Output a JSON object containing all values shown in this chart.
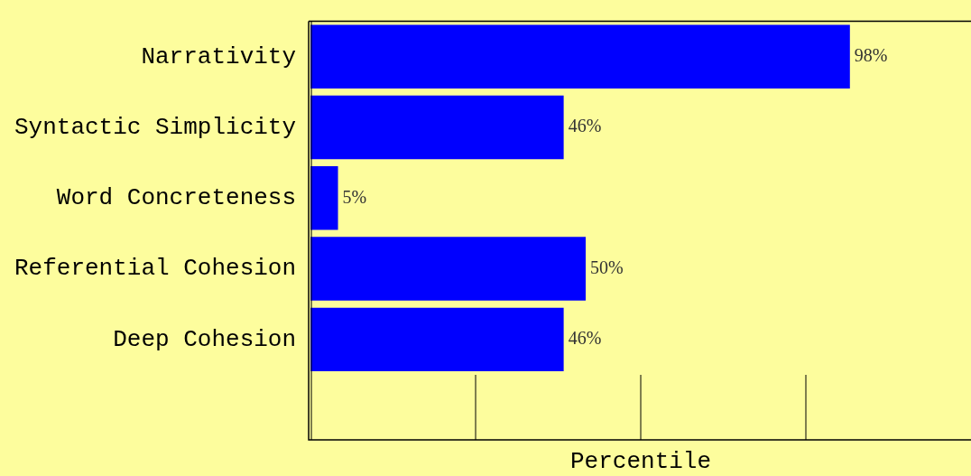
{
  "chart_data": {
    "type": "bar",
    "orientation": "horizontal",
    "xlabel": "Percentile",
    "categories": [
      "Narrativity",
      "Syntactic Simplicity",
      "Word Concreteness",
      "Referential Cohesion",
      "Deep Cohesion"
    ],
    "values": [
      98,
      46,
      5,
      50,
      46
    ],
    "value_labels": [
      "98%",
      "46%",
      "5%",
      "50%",
      "46%"
    ],
    "color": "#0000ff",
    "tick_labels": "y",
    "grid": false,
    "legend": false
  }
}
